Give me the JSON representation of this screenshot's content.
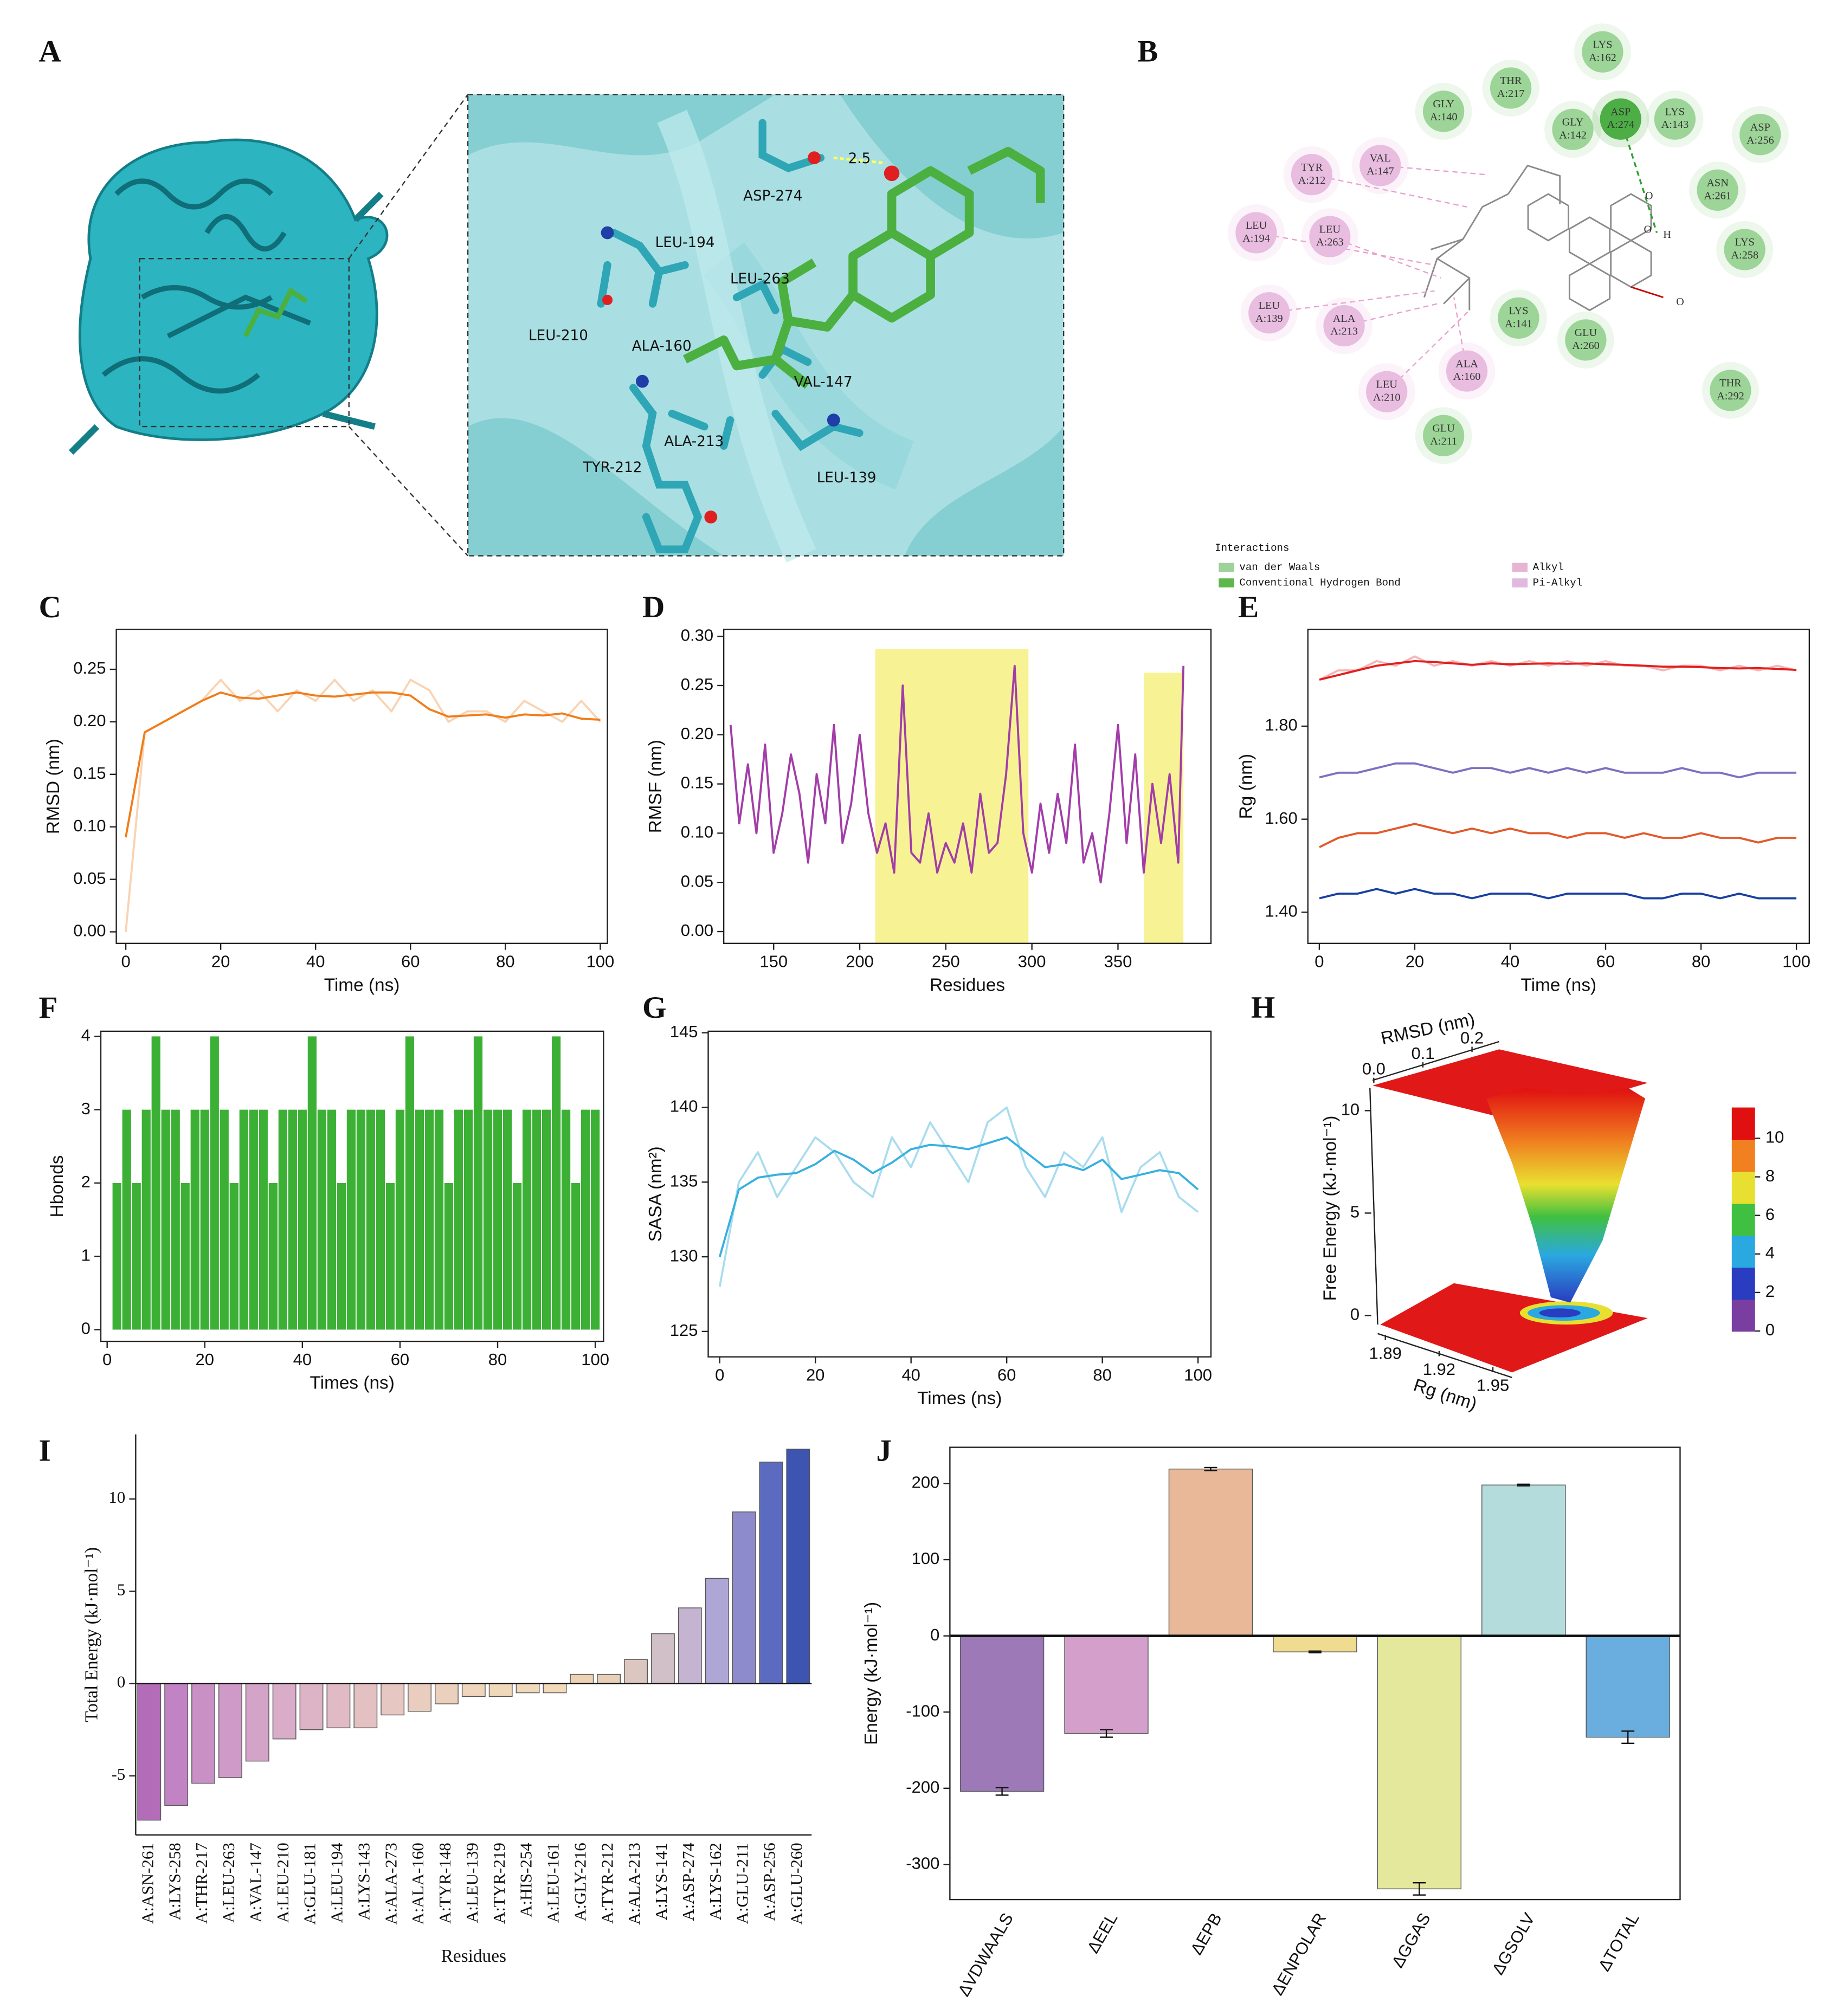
{
  "structure_panel": {
    "label": "A",
    "residues": [
      "ASP-274",
      "LEU-194",
      "LEU-263",
      "LEU-210",
      "ALA-160",
      "VAL-147",
      "ALA-213",
      "TYR-212",
      "LEU-139"
    ],
    "distance": 2.5
  },
  "interaction_panel": {
    "label": "B",
    "nodes": [
      {
        "residue": "LYS",
        "chain": "A:162",
        "color": "#9cd597"
      },
      {
        "residue": "THR",
        "chain": "A:217",
        "color": "#9cd597"
      },
      {
        "residue": "GLY",
        "chain": "A:140",
        "color": "#9cd597"
      },
      {
        "residue": "GLY",
        "chain": "A:142",
        "color": "#9cd597"
      },
      {
        "residue": "ASP",
        "chain": "A:274",
        "color": "#4cae44"
      },
      {
        "residue": "LYS",
        "chain": "A:143",
        "color": "#9cd597"
      },
      {
        "residue": "ASP",
        "chain": "A:256",
        "color": "#9cd597"
      },
      {
        "residue": "ASN",
        "chain": "A:261",
        "color": "#9cd597"
      },
      {
        "residue": "LYS",
        "chain": "A:258",
        "color": "#9cd597"
      },
      {
        "residue": "VAL",
        "chain": "A:147",
        "color": "#e8bde0"
      },
      {
        "residue": "TYR",
        "chain": "A:212",
        "color": "#e8bde0"
      },
      {
        "residue": "LEU",
        "chain": "A:194",
        "color": "#e8bde0"
      },
      {
        "residue": "LEU",
        "chain": "A:263",
        "color": "#e8bde0"
      },
      {
        "residue": "LEU",
        "chain": "A:139",
        "color": "#e8bde0"
      },
      {
        "residue": "ALA",
        "chain": "A:213",
        "color": "#e8bde0"
      },
      {
        "residue": "LYS",
        "chain": "A:141",
        "color": "#9cd597"
      },
      {
        "residue": "GLU",
        "chain": "A:260",
        "color": "#9cd597"
      },
      {
        "residue": "ALA",
        "chain": "A:160",
        "color": "#e8bde0"
      },
      {
        "residue": "LEU",
        "chain": "A:210",
        "color": "#e8bde0"
      },
      {
        "residue": "GLU",
        "chain": "A:211",
        "color": "#9cd597"
      },
      {
        "residue": "THR",
        "chain": "A:292",
        "color": "#9cd597"
      }
    ],
    "atoms": [
      "O",
      "O",
      "H",
      "O"
    ],
    "legend": {
      "title": "Interactions",
      "items": [
        {
          "name": "van der Waals",
          "color": "#9fd19a"
        },
        {
          "name": "Conventional Hydrogen Bond",
          "color": "#5cb84c"
        },
        {
          "name": "Alkyl",
          "color": "#e8b4d4"
        },
        {
          "name": "Pi-Alkyl",
          "color": "#e0b8e0"
        }
      ]
    }
  },
  "chart_data": [
    {
      "type": "line",
      "panel": "C",
      "xlabel": "Time (ns)",
      "ylabel": "RMSD (nm)",
      "x": [
        0,
        4,
        8,
        12,
        16,
        20,
        24,
        28,
        32,
        36,
        40,
        44,
        48,
        52,
        56,
        60,
        64,
        68,
        72,
        76,
        80,
        84,
        88,
        92,
        96,
        100
      ],
      "series": [
        {
          "color": "#f9d3b2",
          "values": [
            0.0,
            0.19,
            0.2,
            0.21,
            0.22,
            0.24,
            0.22,
            0.23,
            0.21,
            0.23,
            0.22,
            0.24,
            0.22,
            0.23,
            0.21,
            0.24,
            0.23,
            0.2,
            0.21,
            0.21,
            0.2,
            0.22,
            0.21,
            0.2,
            0.22,
            0.2
          ]
        },
        {
          "color": "#f07d1a",
          "values": [
            0.09,
            0.19,
            0.2,
            0.21,
            0.22,
            0.228,
            0.223,
            0.222,
            0.225,
            0.228,
            0.225,
            0.224,
            0.226,
            0.228,
            0.228,
            0.225,
            0.212,
            0.205,
            0.206,
            0.207,
            0.204,
            0.207,
            0.206,
            0.208,
            0.203,
            0.202
          ]
        }
      ],
      "xlim": [
        -2,
        101.5
      ],
      "ylim": [
        -0.011,
        0.288
      ],
      "xticks": [
        0,
        20,
        40,
        60,
        80,
        100
      ],
      "yticks": [
        {
          "value": 0,
          "label": "0.00"
        },
        {
          "value": 0.05,
          "label": "0.05"
        },
        {
          "value": 0.1,
          "label": "0.10"
        },
        {
          "value": 0.15,
          "label": "0.15"
        },
        {
          "value": 0.2,
          "label": "0.20"
        },
        {
          "value": 0.25,
          "label": "0.25"
        }
      ]
    },
    {
      "type": "line",
      "panel": "D",
      "xlabel": "Residues",
      "ylabel": "RMSF (nm)",
      "x": [
        125,
        130,
        135,
        140,
        145,
        150,
        155,
        160,
        165,
        170,
        175,
        180,
        185,
        190,
        195,
        200,
        205,
        210,
        215,
        220,
        225,
        230,
        235,
        240,
        245,
        250,
        255,
        260,
        265,
        270,
        275,
        280,
        285,
        290,
        295,
        300,
        305,
        310,
        315,
        320,
        325,
        330,
        335,
        340,
        345,
        350,
        355,
        360,
        365,
        370,
        375,
        380,
        385,
        388
      ],
      "series": [
        {
          "color": "#a23da8",
          "values": [
            0.21,
            0.11,
            0.17,
            0.1,
            0.19,
            0.08,
            0.12,
            0.18,
            0.14,
            0.07,
            0.16,
            0.11,
            0.21,
            0.09,
            0.13,
            0.2,
            0.12,
            0.08,
            0.11,
            0.06,
            0.25,
            0.08,
            0.07,
            0.12,
            0.06,
            0.09,
            0.07,
            0.11,
            0.06,
            0.14,
            0.08,
            0.09,
            0.16,
            0.27,
            0.1,
            0.06,
            0.13,
            0.08,
            0.14,
            0.09,
            0.19,
            0.07,
            0.1,
            0.05,
            0.12,
            0.21,
            0.09,
            0.18,
            0.06,
            0.15,
            0.09,
            0.16,
            0.07,
            0.27
          ]
        }
      ],
      "regions": [
        {
          "x": [
            209,
            298
          ],
          "top": 0.287,
          "color": "#f5f07a"
        },
        {
          "x": [
            365,
            388
          ],
          "top": 0.263,
          "color": "#f5f07a"
        }
      ],
      "xlim": [
        121,
        404
      ],
      "ylim": [
        -0.012,
        0.307
      ],
      "xticks": [
        150,
        200,
        250,
        300,
        350
      ],
      "yticks": [
        {
          "value": 0,
          "label": "0.00"
        },
        {
          "value": 0.05,
          "label": "0.05"
        },
        {
          "value": 0.1,
          "label": "0.10"
        },
        {
          "value": 0.15,
          "label": "0.15"
        },
        {
          "value": 0.2,
          "label": "0.20"
        },
        {
          "value": 0.25,
          "label": "0.25"
        },
        {
          "value": 0.3,
          "label": "0.30"
        }
      ]
    },
    {
      "type": "line",
      "panel": "E",
      "xlabel": "Time (ns)",
      "ylabel": "Rg (nm)",
      "x": [
        0,
        4,
        8,
        12,
        16,
        20,
        24,
        28,
        32,
        36,
        40,
        44,
        48,
        52,
        56,
        60,
        64,
        68,
        72,
        76,
        80,
        84,
        88,
        92,
        96,
        100
      ],
      "series": [
        {
          "color": "#f6b5b5",
          "values": [
            1.9,
            1.92,
            1.92,
            1.94,
            1.93,
            1.95,
            1.93,
            1.94,
            1.93,
            1.94,
            1.93,
            1.94,
            1.93,
            1.94,
            1.93,
            1.94,
            1.93,
            1.93,
            1.92,
            1.93,
            1.93,
            1.92,
            1.93,
            1.92,
            1.93,
            1.92
          ]
        },
        {
          "color": "#e02020",
          "values": [
            1.9,
            1.91,
            1.92,
            1.93,
            1.935,
            1.94,
            1.938,
            1.935,
            1.932,
            1.935,
            1.933,
            1.934,
            1.935,
            1.934,
            1.935,
            1.933,
            1.932,
            1.93,
            1.928,
            1.928,
            1.927,
            1.925,
            1.924,
            1.925,
            1.923,
            1.921
          ]
        },
        {
          "color": "#7f6fc0",
          "values": [
            1.69,
            1.7,
            1.7,
            1.71,
            1.72,
            1.72,
            1.71,
            1.7,
            1.71,
            1.71,
            1.7,
            1.71,
            1.7,
            1.71,
            1.7,
            1.71,
            1.7,
            1.7,
            1.7,
            1.71,
            1.7,
            1.7,
            1.69,
            1.7,
            1.7,
            1.7
          ]
        },
        {
          "color": "#e05a2a",
          "values": [
            1.54,
            1.56,
            1.57,
            1.57,
            1.58,
            1.59,
            1.58,
            1.57,
            1.58,
            1.57,
            1.58,
            1.57,
            1.57,
            1.56,
            1.57,
            1.57,
            1.56,
            1.57,
            1.56,
            1.56,
            1.57,
            1.56,
            1.56,
            1.55,
            1.56,
            1.56
          ]
        },
        {
          "color": "#1840a0",
          "values": [
            1.43,
            1.44,
            1.44,
            1.45,
            1.44,
            1.45,
            1.44,
            1.44,
            1.43,
            1.44,
            1.44,
            1.44,
            1.43,
            1.44,
            1.44,
            1.44,
            1.44,
            1.43,
            1.43,
            1.44,
            1.44,
            1.43,
            1.44,
            1.43,
            1.43,
            1.43
          ]
        }
      ],
      "xlim": [
        -2.4,
        102.7
      ],
      "ylim": [
        1.333,
        2.008
      ],
      "xticks": [
        0,
        20,
        40,
        60,
        80,
        100
      ],
      "yticks": [
        {
          "value": 1.4,
          "label": "1.40"
        },
        {
          "value": 1.6,
          "label": "1.60"
        },
        {
          "value": 1.8,
          "label": "1.80"
        }
      ]
    },
    {
      "type": "bar",
      "panel": "F",
      "xlabel": "Times (ns)",
      "ylabel": "Hbonds",
      "color": "#3cb035",
      "x": [
        0,
        2,
        4,
        6,
        8,
        10,
        12,
        14,
        16,
        18,
        20,
        22,
        24,
        26,
        28,
        30,
        32,
        34,
        36,
        38,
        40,
        42,
        44,
        46,
        48,
        50,
        52,
        54,
        56,
        58,
        60,
        62,
        64,
        66,
        68,
        70,
        72,
        74,
        76,
        78,
        80,
        82,
        84,
        86,
        88,
        90,
        92,
        94,
        96,
        98,
        100
      ],
      "values": [
        0,
        2,
        3,
        2,
        3,
        4,
        3,
        3,
        2,
        3,
        3,
        4,
        3,
        2,
        3,
        3,
        3,
        2,
        3,
        3,
        3,
        4,
        3,
        3,
        2,
        3,
        3,
        3,
        3,
        2,
        3,
        4,
        3,
        3,
        3,
        2,
        3,
        3,
        4,
        3,
        3,
        3,
        2,
        3,
        3,
        3,
        4,
        3,
        2,
        3,
        3
      ],
      "xlim": [
        -1.3,
        101.7
      ],
      "ylim": [
        -0.16,
        4.07
      ],
      "xticks": [
        0,
        20,
        40,
        60,
        80,
        100
      ],
      "yticks": [
        0,
        1,
        2,
        3,
        4
      ]
    },
    {
      "type": "line",
      "panel": "G",
      "xlabel": "Times (ns)",
      "ylabel": "SASA (nm²)",
      "x": [
        0,
        4,
        8,
        12,
        16,
        20,
        24,
        28,
        32,
        36,
        40,
        44,
        48,
        52,
        56,
        60,
        64,
        68,
        72,
        76,
        80,
        84,
        88,
        92,
        96,
        100
      ],
      "series": [
        {
          "color": "#aadcef",
          "values": [
            128,
            135,
            137,
            134,
            136,
            138,
            137,
            135,
            134,
            138,
            136,
            139,
            137,
            135,
            139,
            140,
            136,
            134,
            137,
            136,
            138,
            133,
            136,
            137,
            134,
            133
          ]
        },
        {
          "color": "#38b0e0",
          "values": [
            130,
            134.5,
            135.3,
            135.5,
            135.6,
            136.2,
            137.1,
            136.5,
            135.6,
            136.3,
            137.2,
            137.5,
            137.4,
            137.2,
            137.6,
            138,
            137,
            136,
            136.2,
            135.8,
            136.5,
            135.2,
            135.5,
            135.8,
            135.6,
            134.5
          ]
        }
      ],
      "xlim": [
        -2.4,
        102.7
      ],
      "ylim": [
        123.3,
        145.1
      ],
      "xticks": [
        0,
        20,
        40,
        60,
        80,
        100
      ],
      "yticks": [
        125,
        130,
        135,
        140,
        145
      ]
    },
    {
      "type": "surface",
      "panel": "H",
      "xlabel": "RMSD (nm)",
      "ylabel": "Rg (nm)",
      "zlabel": "Free Energy (kJ·mol⁻¹)",
      "xlim": [
        0,
        0.25
      ],
      "xticks": [
        {
          "value": 0,
          "label": "0.0"
        },
        {
          "value": 0.1,
          "label": "0.1"
        },
        {
          "value": 0.2,
          "label": "0.2"
        }
      ],
      "ylim": [
        1.885,
        1.96
      ],
      "yticks": [
        1.89,
        1.92,
        1.95
      ],
      "zlim": [
        0,
        11.1
      ],
      "zticks": [
        0,
        5,
        10
      ],
      "clim": [
        0,
        11.6
      ],
      "cticks": [
        0,
        2,
        4,
        6,
        8,
        10
      ],
      "colors": [
        "#7a3ea0",
        "#2a3cc0",
        "#2aa8e0",
        "#40c040",
        "#e8e030",
        "#f08020",
        "#e01010"
      ]
    },
    {
      "type": "bar",
      "panel": "I",
      "xlabel": "Residues",
      "ylabel": "Total Energy (kJ·mol⁻¹)",
      "categories": [
        "A:ASN-261",
        "A:LYS-258",
        "A:THR-217",
        "A:LEU-263",
        "A:VAL-147",
        "A:LEU-210",
        "A:GLU-181",
        "A:LEU-194",
        "A:LYS-143",
        "A:ALA-273",
        "A:ALA-160",
        "A:TYR-148",
        "A:LEU-139",
        "A:TYR-219",
        "A:HIS-254",
        "A:LEU-161",
        "A:GLY-216",
        "A:TYR-212",
        "A:ALA-213",
        "A:LYS-141",
        "A:ASP-274",
        "A:LYS-162",
        "A:GLU-211",
        "A:ASP-256",
        "A:GLU-260"
      ],
      "values": [
        -7.4,
        -6.6,
        -5.4,
        -5.1,
        -4.2,
        -3.0,
        -2.5,
        -2.4,
        -2.4,
        -1.7,
        -1.5,
        -1.1,
        -0.7,
        -0.7,
        -0.5,
        -0.5,
        0.5,
        0.5,
        1.3,
        2.7,
        4.1,
        5.7,
        9.3,
        12.0,
        12.7
      ],
      "colors": [
        "#b36cb8",
        "#c283c4",
        "#c990c6",
        "#cf9ac8",
        "#d4a3c8",
        "#d9adc8",
        "#ddb4c6",
        "#e0bbc5",
        "#e3c1c3",
        "#e6c7c1",
        "#e9cdbf",
        "#ebd1bd",
        "#eed5bc",
        "#f0d8bb",
        "#f1dabb",
        "#f2dbbb",
        "#ecd3b3",
        "#e6d0b8",
        "#dcc7c0",
        "#d2c0c8",
        "#c4b4d2",
        "#aea6d4",
        "#8d8bcc",
        "#5b6cc0",
        "#3d55b0"
      ],
      "ylim": [
        -8.2,
        13.5
      ],
      "yticks": [
        -5,
        0,
        5,
        10
      ]
    },
    {
      "type": "bar",
      "panel": "J",
      "ylabel": "Energy (kJ·mol⁻¹)",
      "categories": [
        "ΔVDWAALS",
        "ΔEEL",
        "ΔEPB",
        "ΔENPOLAR",
        "ΔGGAS",
        "ΔGSOLV",
        "ΔTOTAL"
      ],
      "values": [
        -204,
        -128,
        219,
        -21,
        -332,
        198,
        -133
      ],
      "errors": [
        5,
        5,
        2,
        1,
        8,
        1,
        8
      ],
      "colors": [
        "#9d79b8",
        "#d49fcb",
        "#e8b898",
        "#f0dc90",
        "#e4e89c",
        "#b4dcdc",
        "#6aaee0"
      ],
      "ylim": [
        -346,
        247.5
      ],
      "yticks": [
        -300,
        -200,
        -100,
        0,
        100,
        200
      ]
    }
  ]
}
